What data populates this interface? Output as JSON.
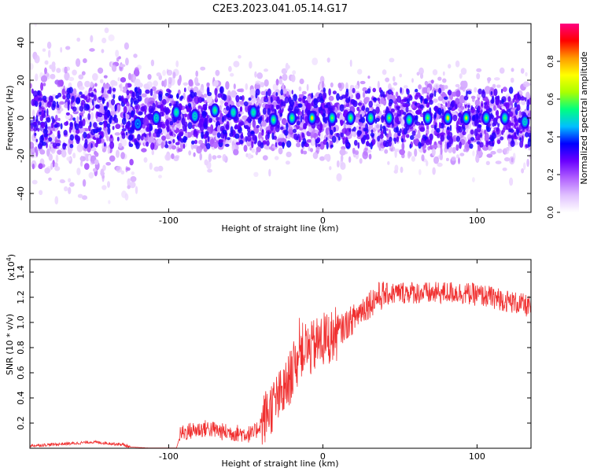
{
  "title": "C2E3.2023.041.05.14.G17",
  "chart_data": [
    {
      "type": "heatmap",
      "xlabel": "Height of straight line (km)",
      "ylabel": "Frequency (Hz)",
      "xlim": [
        -190,
        135
      ],
      "ylim": [
        -50,
        50
      ],
      "xticks": [
        -100,
        0,
        100
      ],
      "yticks": [
        -40,
        -20,
        0,
        20,
        40
      ],
      "colorbar": {
        "label": "Normalized spectral amplitude",
        "range": [
          0,
          1
        ],
        "ticks": [
          0.0,
          0.2,
          0.4,
          0.6,
          0.8
        ],
        "colors": [
          "#ffffff",
          "#e0c0ff",
          "#b060ff",
          "#6a00ff",
          "#0000ff",
          "#00bfff",
          "#00ff80",
          "#aaff00",
          "#ffff00",
          "#ff9900",
          "#ff0000",
          "#ff0080"
        ]
      },
      "peaks": [
        {
          "x": -120,
          "f": -3,
          "amp": 0.45
        },
        {
          "x": -108,
          "f": 0,
          "amp": 0.5
        },
        {
          "x": -95,
          "f": 3,
          "amp": 0.55
        },
        {
          "x": -83,
          "f": 1,
          "amp": 0.5
        },
        {
          "x": -70,
          "f": 4,
          "amp": 0.58
        },
        {
          "x": -58,
          "f": 3,
          "amp": 0.55
        },
        {
          "x": -45,
          "f": 3,
          "amp": 0.55
        },
        {
          "x": -32,
          "f": -1,
          "amp": 0.6
        },
        {
          "x": -20,
          "f": 0,
          "amp": 0.6
        },
        {
          "x": -7,
          "f": 0,
          "amp": 0.75
        },
        {
          "x": 6,
          "f": 0,
          "amp": 0.62
        },
        {
          "x": 18,
          "f": 0,
          "amp": 0.62
        },
        {
          "x": 31,
          "f": 0,
          "amp": 0.6
        },
        {
          "x": 43,
          "f": 0,
          "amp": 0.62
        },
        {
          "x": 56,
          "f": -1,
          "amp": 0.58
        },
        {
          "x": 68,
          "f": 0,
          "amp": 0.62
        },
        {
          "x": 81,
          "f": 0,
          "amp": 0.75
        },
        {
          "x": 93,
          "f": 0,
          "amp": 0.7
        },
        {
          "x": 106,
          "f": 0,
          "amp": 0.62
        },
        {
          "x": 118,
          "f": 0,
          "amp": 0.58
        },
        {
          "x": 131,
          "f": -2,
          "amp": 0.5
        }
      ]
    },
    {
      "type": "line",
      "xlabel": "Height of straight line (km)",
      "ylabel": "SNR (10 * v/v)",
      "y_multiplier_label": "(x10",
      "y_multiplier_exp": "4",
      "y_multiplier_close": ")",
      "xlim": [
        -190,
        135
      ],
      "ylim": [
        0,
        1.5
      ],
      "xticks": [
        -100,
        0,
        100
      ],
      "yticks": [
        0.2,
        0.4,
        0.6,
        0.8,
        1.0,
        1.2,
        1.4
      ],
      "line_color": "#f03030",
      "series": [
        {
          "x": [
            -190,
            -175,
            -160,
            -150,
            -140,
            -130,
            -125,
            -110,
            -100,
            -95,
            -92,
            -85,
            -75,
            -65,
            -55,
            -45,
            -40,
            -35,
            -30,
            -25,
            -20,
            -15,
            -12,
            -8,
            -5,
            0,
            5,
            10,
            15,
            20,
            25,
            30,
            35,
            40,
            45,
            55,
            70,
            85,
            100,
            110,
            120,
            130,
            135
          ],
          "y": [
            0.02,
            0.03,
            0.04,
            0.05,
            0.04,
            0.03,
            0.01,
            0.0,
            0.0,
            0.0,
            0.12,
            0.14,
            0.16,
            0.13,
            0.12,
            0.11,
            0.2,
            0.3,
            0.38,
            0.45,
            0.6,
            0.75,
            0.8,
            0.78,
            0.82,
            0.86,
            0.88,
            0.92,
            0.98,
            1.03,
            1.1,
            1.15,
            1.2,
            1.22,
            1.23,
            1.24,
            1.23,
            1.24,
            1.22,
            1.2,
            1.17,
            1.14,
            1.12
          ]
        }
      ]
    }
  ]
}
